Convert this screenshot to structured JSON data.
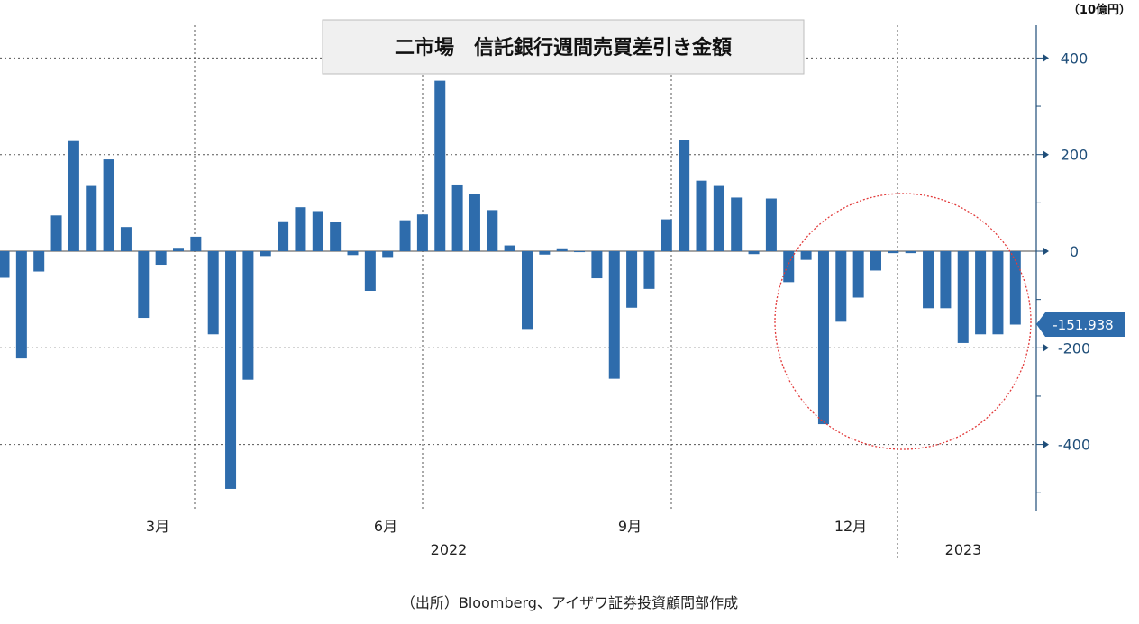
{
  "chart_data": {
    "type": "bar",
    "title": "二市場　信託銀行週間売買差引き金額",
    "unit_label": "（10億円）",
    "y_ticks": [
      400,
      200,
      0,
      -200,
      -400
    ],
    "y_tick_labels": [
      "400",
      "200",
      "0",
      "-200",
      "-400"
    ],
    "ylim": [
      -490,
      450
    ],
    "x_tick_labels": [
      "3月",
      "6月",
      "9月",
      "12月"
    ],
    "year_labels": [
      "2022",
      "2023"
    ],
    "grid": true,
    "bar_color": "#2e6cac",
    "highlight_color": "#e23b3b",
    "last_value_label": "-151.938",
    "series": [
      {
        "values": [
          -55,
          -222,
          -42,
          74,
          228,
          135,
          190,
          50,
          -138,
          -28,
          7,
          30,
          -172,
          -492,
          -266,
          -10,
          62,
          91,
          83,
          60,
          -8,
          -82,
          -12,
          64,
          76,
          353,
          138,
          118,
          85,
          12,
          -161,
          -7,
          6,
          -2,
          -56,
          -264,
          -117,
          -78,
          66,
          230,
          146,
          135,
          111,
          -6,
          109,
          -64,
          -18,
          -358,
          -146,
          -96,
          -40,
          -4,
          -4,
          -118,
          -118,
          -190,
          -172,
          -172,
          -151.938
        ]
      }
    ]
  },
  "footer": {
    "source": "（出所）Bloomberg、アイザワ証券投資顧問部作成"
  }
}
